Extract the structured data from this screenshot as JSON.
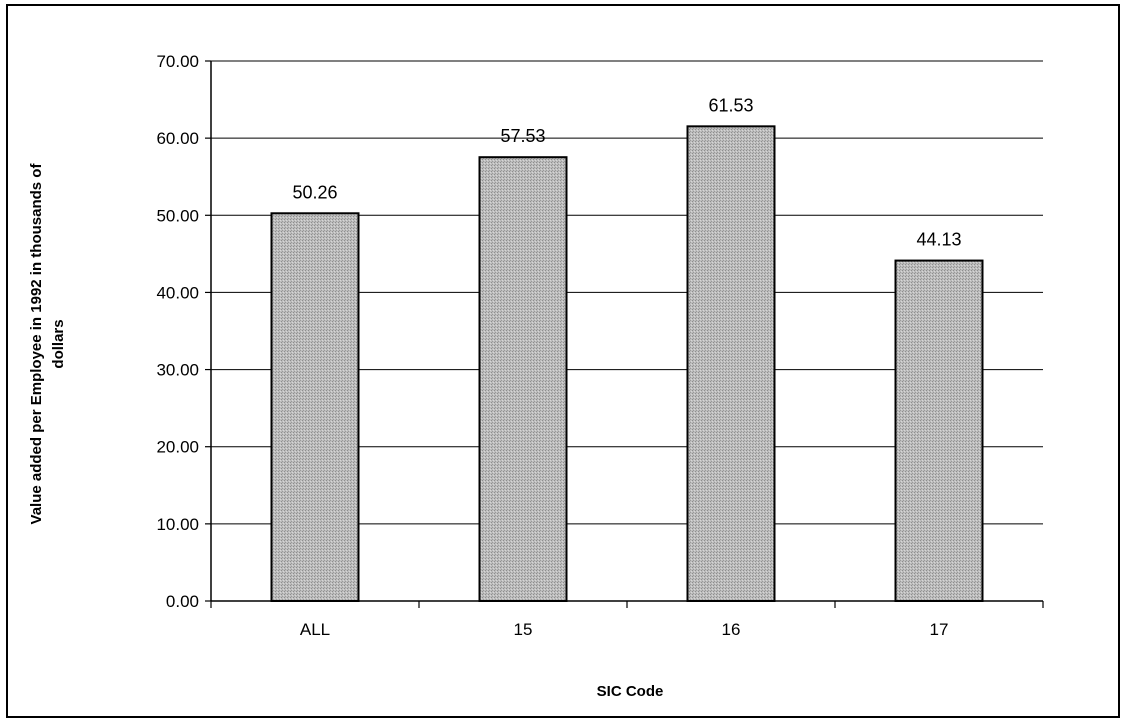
{
  "chart_data": {
    "type": "bar",
    "categories": [
      "ALL",
      "15",
      "16",
      "17"
    ],
    "values": [
      50.26,
      57.53,
      61.53,
      44.13
    ],
    "data_labels": [
      "50.26",
      "57.53",
      "61.53",
      "44.13"
    ],
    "title": "",
    "xlabel": "SIC Code",
    "ylabel": "Value added per Employee in 1992 in thousands of",
    "ylabel_line2": "dollars",
    "ylim": [
      0,
      70
    ],
    "y_ticks": [
      0,
      10,
      20,
      30,
      40,
      50,
      60,
      70
    ],
    "y_tick_labels": [
      "0.00",
      "10.00",
      "20.00",
      "30.00",
      "40.00",
      "50.00",
      "60.00",
      "70.00"
    ],
    "grid": true,
    "legend": "none",
    "colors": {
      "bar_fill": "#b4b4b4",
      "bar_stroke": "#000000",
      "grid": "#000000",
      "axis": "#000000"
    }
  }
}
